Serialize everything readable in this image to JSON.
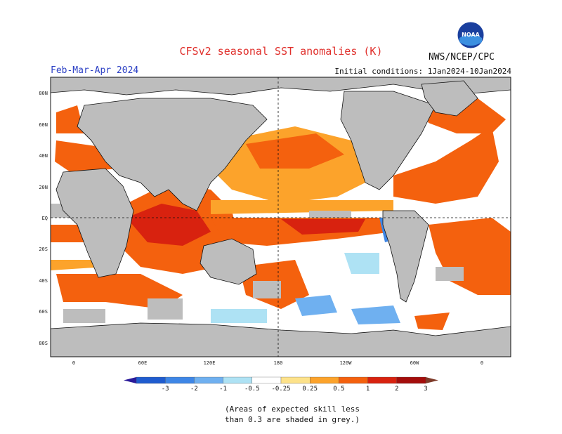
{
  "header": {
    "title": "CFSv2 seasonal SST anomalies (K)",
    "season": "Feb-Mar-Apr 2024",
    "initial_conditions": "Initial conditions: 1Jan2024-10Jan2024",
    "agency": "NWS/NCEP/CPC",
    "logo_text": "NOAA"
  },
  "map": {
    "lat_labels": [
      "80N",
      "60N",
      "40N",
      "20N",
      "EQ",
      "20S",
      "40S",
      "60S",
      "80S"
    ],
    "lon_labels": [
      "0",
      "60E",
      "120E",
      "180",
      "120W",
      "60W",
      "0"
    ],
    "land_color": "#bdbdbd",
    "no_skill_color": "#bdbdbd"
  },
  "colorbar": {
    "labels": [
      "-3",
      "-2",
      "-1",
      "-0.5",
      "-0.25",
      "0.25",
      "0.5",
      "1",
      "2",
      "3"
    ],
    "colors": [
      "#2a1a9a",
      "#1f5ccf",
      "#3e86e6",
      "#6fb0f0",
      "#aee2f4",
      "#ffffff",
      "#fde28a",
      "#fca32b",
      "#f4610e",
      "#d8220f",
      "#a40d0b",
      "#7e3b2a"
    ]
  },
  "footnote": {
    "line1": "(Areas of expected skill less",
    "line2": "than 0.3 are shaded in grey.)"
  }
}
